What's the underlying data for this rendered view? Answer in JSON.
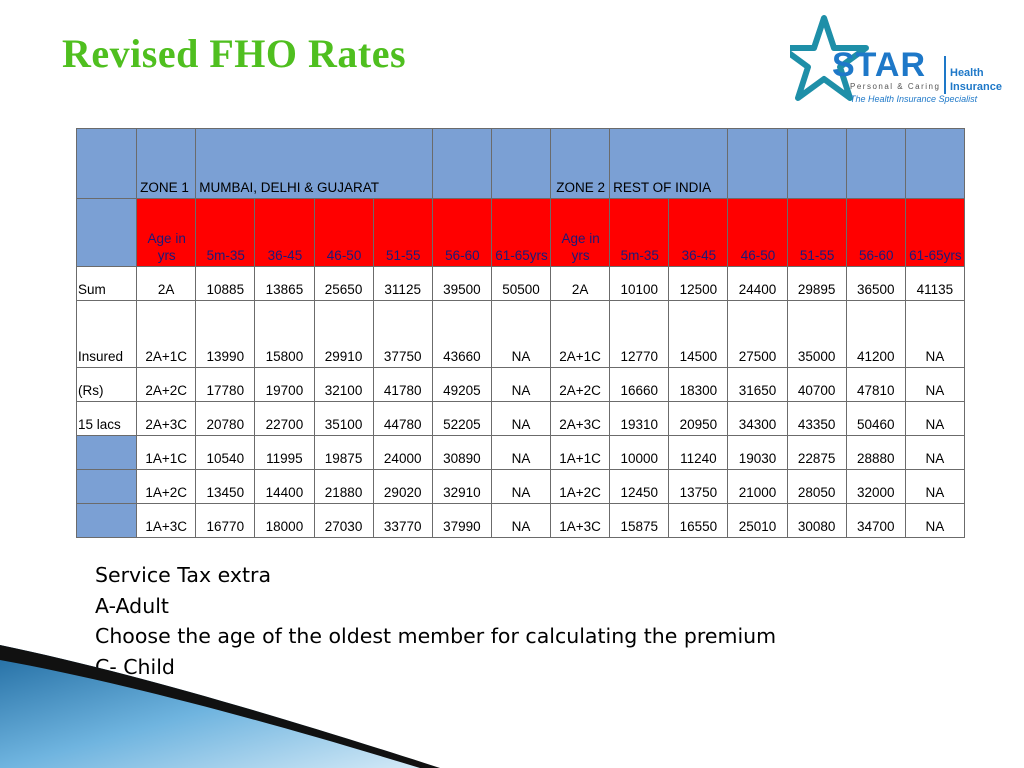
{
  "slide": {
    "title": "Revised FHO Rates"
  },
  "logo": {
    "brand": "STAR",
    "tagline": "Personal & Caring",
    "side_line1": "Health",
    "side_line2": "Insurance",
    "specialist": "The Health Insurance Specialist",
    "colors": {
      "blue": "#1e78c8",
      "star": "#1e8fa8"
    }
  },
  "table": {
    "zone1_label": "ZONE 1",
    "zone1_name": "MUMBAI, DELHI  & GUJARAT",
    "zone2_label": "ZONE 2",
    "zone2_name": "REST OF INDIA",
    "age_header": "Age in yrs",
    "age_bands": [
      "5m-35",
      "36-45",
      "46-50",
      "51-55",
      "56-60",
      "61-65yrs"
    ],
    "side_labels": [
      "",
      "Sum",
      "Insured",
      "(Rs)",
      "15 lacs",
      "",
      "",
      ""
    ],
    "rows": [
      {
        "cat": "2A",
        "z1": [
          "10885",
          "13865",
          "25650",
          "31125",
          "39500",
          "50500"
        ],
        "z2": [
          "10100",
          "12500",
          "24400",
          "29895",
          "36500",
          "41135"
        ]
      },
      {
        "cat": "2A+1C",
        "z1": [
          "13990",
          "15800",
          "29910",
          "37750",
          "43660",
          "NA"
        ],
        "z2": [
          "12770",
          "14500",
          "27500",
          "35000",
          "41200",
          "NA"
        ]
      },
      {
        "cat": "2A+2C",
        "z1": [
          "17780",
          "19700",
          "32100",
          "41780",
          "49205",
          "NA"
        ],
        "z2": [
          "16660",
          "18300",
          "31650",
          "40700",
          "47810",
          "NA"
        ]
      },
      {
        "cat": "2A+3C",
        "z1": [
          "20780",
          "22700",
          "35100",
          "44780",
          "52205",
          "NA"
        ],
        "z2": [
          "19310",
          "20950",
          "34300",
          "43350",
          "50460",
          "NA"
        ]
      },
      {
        "cat": "1A+1C",
        "z1": [
          "10540",
          "11995",
          "19875",
          "24000",
          "30890",
          "NA"
        ],
        "z2": [
          "10000",
          "11240",
          "19030",
          "22875",
          "28880",
          "NA"
        ]
      },
      {
        "cat": "1A+2C",
        "z1": [
          "13450",
          "14400",
          "21880",
          "29020",
          "32910",
          "NA"
        ],
        "z2": [
          "12450",
          "13750",
          "21000",
          "28050",
          "32000",
          "NA"
        ]
      },
      {
        "cat": "1A+3C",
        "z1": [
          "16770",
          "18000",
          "27030",
          "33770",
          "37990",
          "NA"
        ],
        "z2": [
          "15875",
          "16550",
          "25010",
          "30080",
          "34700",
          "NA"
        ]
      }
    ],
    "colors": {
      "header_blue": "#7ba0d4",
      "header_red": "#ff0000",
      "header_text": "#1a1a7a"
    }
  },
  "notes": [
    "Service Tax extra",
    "A-Adult",
    "Choose the age  of the oldest member for calculating the premium",
    "C- Child"
  ],
  "colors": {
    "title_green": "#4fbf1f"
  }
}
